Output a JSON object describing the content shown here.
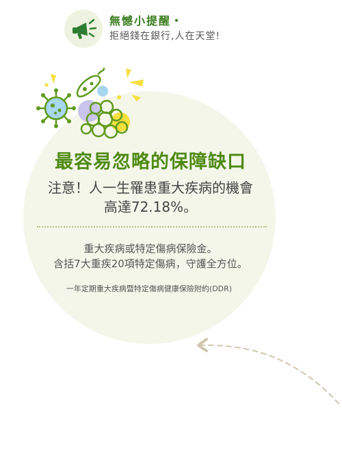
{
  "reminder": {
    "title": "無憾小提醒・",
    "subtitle": "拒絕錢在銀行,人在天堂!",
    "icon": "megaphone-icon"
  },
  "illustration": {
    "icon": "germs-illustration-icon",
    "colors": {
      "green": "#5e9a1c",
      "yellow": "#f7df3e",
      "blue": "#a7d6ef",
      "purple": "#c9c4ec"
    }
  },
  "card": {
    "headline": "最容易忽略的保障缺口",
    "notice_line1": "注意！人一生罹患重大疾病的機會",
    "notice_line2": "高達72.18%。",
    "benefit_line1": "重大疾病或特定傷病保險金。",
    "benefit_line2": "含括7大重疾20項特定傷病，守護全方位。",
    "product_name": "一年定期重大疾病暨特定傷病健康保險附約(DDR)"
  },
  "colors": {
    "accent_green": "#4e8a12",
    "card_background": "#f4f6ea",
    "arrow": "#cfc6ab"
  }
}
